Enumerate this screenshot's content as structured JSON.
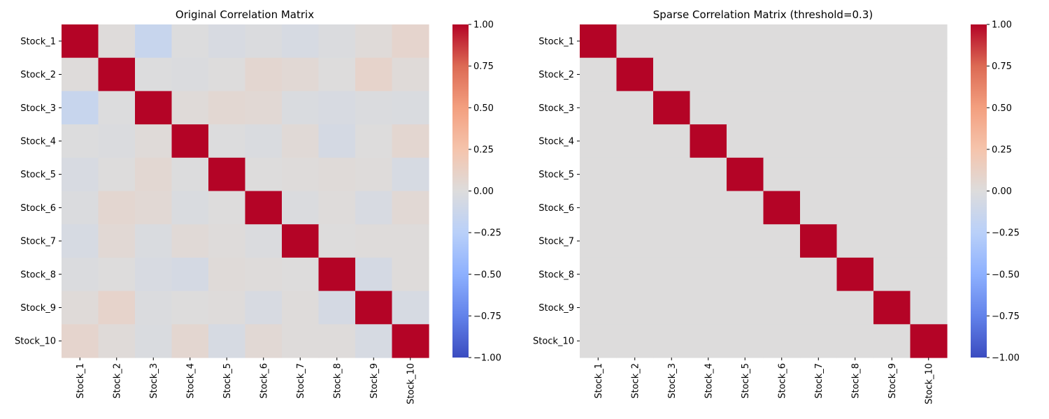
{
  "chart_data": [
    {
      "type": "heatmap",
      "title": "Original Correlation Matrix",
      "row_labels": [
        "Stock_1",
        "Stock_2",
        "Stock_3",
        "Stock_4",
        "Stock_5",
        "Stock_6",
        "Stock_7",
        "Stock_8",
        "Stock_9",
        "Stock_10"
      ],
      "col_labels": [
        "Stock_1",
        "Stock_2",
        "Stock_3",
        "Stock_4",
        "Stock_5",
        "Stock_6",
        "Stock_7",
        "Stock_8",
        "Stock_9",
        "Stock_10"
      ],
      "values": [
        [
          1.0,
          0.01,
          -0.15,
          -0.01,
          -0.04,
          -0.02,
          -0.05,
          -0.02,
          0.02,
          0.08
        ],
        [
          0.01,
          1.0,
          -0.01,
          -0.02,
          0.0,
          0.06,
          0.04,
          0.0,
          0.09,
          0.02
        ],
        [
          -0.15,
          -0.01,
          1.0,
          0.02,
          0.05,
          0.04,
          -0.03,
          -0.04,
          -0.02,
          -0.03
        ],
        [
          -0.01,
          -0.02,
          0.02,
          1.0,
          -0.01,
          -0.03,
          0.03,
          -0.06,
          0.0,
          0.06
        ],
        [
          -0.04,
          0.0,
          0.05,
          -0.01,
          1.0,
          0.0,
          0.01,
          0.02,
          0.01,
          -0.05
        ],
        [
          -0.02,
          0.06,
          0.04,
          -0.03,
          0.0,
          1.0,
          -0.02,
          0.01,
          -0.04,
          0.04
        ],
        [
          -0.05,
          0.04,
          -0.03,
          0.03,
          0.01,
          -0.02,
          1.0,
          0.0,
          0.01,
          0.01
        ],
        [
          -0.02,
          0.0,
          -0.04,
          -0.06,
          0.02,
          0.01,
          0.0,
          1.0,
          -0.06,
          0.01
        ],
        [
          0.02,
          0.09,
          -0.02,
          0.0,
          0.01,
          -0.04,
          0.01,
          -0.06,
          1.0,
          -0.05
        ],
        [
          0.08,
          0.02,
          -0.03,
          0.06,
          -0.05,
          0.04,
          0.01,
          0.01,
          -0.05,
          1.0
        ]
      ],
      "vmin": -1.0,
      "vmax": 1.0,
      "colormap": "coolwarm",
      "colorbar_ticks": [
        "1.00",
        "0.75",
        "0.50",
        "0.25",
        "0.00",
        "−0.25",
        "−0.50",
        "−0.75",
        "−1.00"
      ]
    },
    {
      "type": "heatmap",
      "title": "Sparse Correlation Matrix (threshold=0.3)",
      "row_labels": [
        "Stock_1",
        "Stock_2",
        "Stock_3",
        "Stock_4",
        "Stock_5",
        "Stock_6",
        "Stock_7",
        "Stock_8",
        "Stock_9",
        "Stock_10"
      ],
      "col_labels": [
        "Stock_1",
        "Stock_2",
        "Stock_3",
        "Stock_4",
        "Stock_5",
        "Stock_6",
        "Stock_7",
        "Stock_8",
        "Stock_9",
        "Stock_10"
      ],
      "values": [
        [
          1,
          0,
          0,
          0,
          0,
          0,
          0,
          0,
          0,
          0
        ],
        [
          0,
          1,
          0,
          0,
          0,
          0,
          0,
          0,
          0,
          0
        ],
        [
          0,
          0,
          1,
          0,
          0,
          0,
          0,
          0,
          0,
          0
        ],
        [
          0,
          0,
          0,
          1,
          0,
          0,
          0,
          0,
          0,
          0
        ],
        [
          0,
          0,
          0,
          0,
          1,
          0,
          0,
          0,
          0,
          0
        ],
        [
          0,
          0,
          0,
          0,
          0,
          1,
          0,
          0,
          0,
          0
        ],
        [
          0,
          0,
          0,
          0,
          0,
          0,
          1,
          0,
          0,
          0
        ],
        [
          0,
          0,
          0,
          0,
          0,
          0,
          0,
          1,
          0,
          0
        ],
        [
          0,
          0,
          0,
          0,
          0,
          0,
          0,
          0,
          1,
          0
        ],
        [
          0,
          0,
          0,
          0,
          0,
          0,
          0,
          0,
          0,
          1
        ]
      ],
      "vmin": -1.0,
      "vmax": 1.0,
      "colormap": "coolwarm",
      "colorbar_ticks": [
        "1.00",
        "0.75",
        "0.50",
        "0.25",
        "0.00",
        "−0.25",
        "−0.50",
        "−0.75",
        "−1.00"
      ]
    }
  ]
}
